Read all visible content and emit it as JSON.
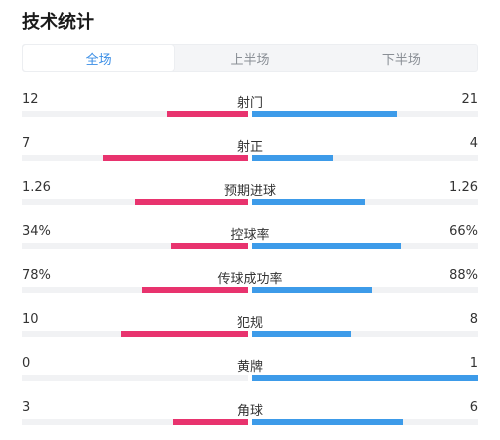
{
  "header": {
    "title": "技术统计"
  },
  "tabs": [
    {
      "label": "全场",
      "active": true
    },
    {
      "label": "上半场",
      "active": false
    },
    {
      "label": "下半场",
      "active": false
    }
  ],
  "colors": {
    "home": "#e8336e",
    "away": "#3d9be9",
    "tab_active": "#3a8ee6"
  },
  "stats": [
    {
      "label": "射门",
      "left": "12",
      "right": "21",
      "left_pct": 0.36,
      "right_pct": 0.64
    },
    {
      "label": "射正",
      "left": "7",
      "right": "4",
      "left_pct": 0.64,
      "right_pct": 0.36
    },
    {
      "label": "预期进球",
      "left": "1.26",
      "right": "1.26",
      "left_pct": 0.5,
      "right_pct": 0.5
    },
    {
      "label": "控球率",
      "left": "34%",
      "right": "66%",
      "left_pct": 0.34,
      "right_pct": 0.66
    },
    {
      "label": "传球成功率",
      "left": "78%",
      "right": "88%",
      "left_pct": 0.47,
      "right_pct": 0.53
    },
    {
      "label": "犯规",
      "left": "10",
      "right": "8",
      "left_pct": 0.56,
      "right_pct": 0.44
    },
    {
      "label": "黄牌",
      "left": "0",
      "right": "1",
      "left_pct": 0.0,
      "right_pct": 1.0
    },
    {
      "label": "角球",
      "left": "3",
      "right": "6",
      "left_pct": 0.33,
      "right_pct": 0.67
    }
  ]
}
